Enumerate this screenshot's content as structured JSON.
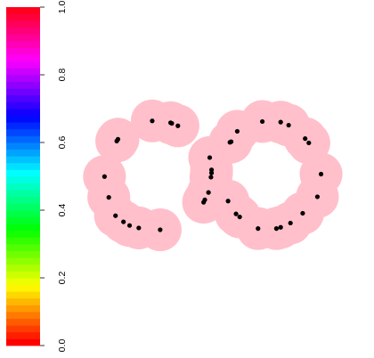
{
  "chart_data": {
    "type": "scatter",
    "title": "",
    "xlabel": "",
    "ylabel": "",
    "colorbar": {
      "range": [
        0.0,
        1.0
      ],
      "ticks": [
        0.0,
        0.2,
        0.4,
        0.6,
        0.8,
        1.0
      ],
      "tick_labels": [
        "0.0",
        "0.2",
        "0.4",
        "0.6",
        "0.8",
        "1.0"
      ],
      "palette": "rainbow (red at 0, through yellow, green, cyan, blue, magenta, back to red at 1)"
    },
    "union_of_balls_color": "#ffc0cb",
    "point_color": "#000000",
    "background_color": "#ffffff",
    "xlim": [
      -2.3,
      2.3
    ],
    "ylim": [
      -1.4,
      1.4
    ],
    "ball_radius": 0.35,
    "series": [
      {
        "values": [
          {
            "x": -1.96,
            "y": 0.04
          },
          {
            "x": -1.89,
            "y": -0.3
          },
          {
            "x": -1.76,
            "y": 0.62
          },
          {
            "x": -1.74,
            "y": 0.65
          },
          {
            "x": -1.78,
            "y": -0.6
          },
          {
            "x": -1.65,
            "y": -0.7
          },
          {
            "x": -1.55,
            "y": -0.76
          },
          {
            "x": -1.4,
            "y": -0.8
          },
          {
            "x": -1.18,
            "y": 0.95
          },
          {
            "x": -1.05,
            "y": -0.83
          },
          {
            "x": -0.88,
            "y": 0.92
          },
          {
            "x": -0.86,
            "y": 0.91
          },
          {
            "x": -0.76,
            "y": 0.87
          },
          {
            "x": -0.34,
            "y": -0.38
          },
          {
            "x": -0.32,
            "y": -0.34
          },
          {
            "x": -0.26,
            "y": -0.22
          },
          {
            "x": -0.24,
            "y": 0.35
          },
          {
            "x": -0.21,
            "y": 0.1
          },
          {
            "x": -0.21,
            "y": 0.15
          },
          {
            "x": -0.22,
            "y": 0.03
          },
          {
            "x": 0.06,
            "y": -0.36
          },
          {
            "x": 0.09,
            "y": 0.6
          },
          {
            "x": 0.11,
            "y": 0.61
          },
          {
            "x": 0.21,
            "y": 0.78
          },
          {
            "x": 0.19,
            "y": -0.57
          },
          {
            "x": 0.25,
            "y": -0.62
          },
          {
            "x": 0.55,
            "y": -0.81
          },
          {
            "x": 0.62,
            "y": 0.94
          },
          {
            "x": 0.85,
            "y": -0.81
          },
          {
            "x": 0.92,
            "y": -0.79
          },
          {
            "x": 0.92,
            "y": 0.93
          },
          {
            "x": 1.05,
            "y": 0.88
          },
          {
            "x": 1.08,
            "y": -0.72
          },
          {
            "x": 1.28,
            "y": -0.56
          },
          {
            "x": 1.32,
            "y": 0.66
          },
          {
            "x": 1.38,
            "y": 0.59
          },
          {
            "x": 1.52,
            "y": -0.29
          },
          {
            "x": 1.58,
            "y": 0.08
          }
        ]
      }
    ]
  }
}
